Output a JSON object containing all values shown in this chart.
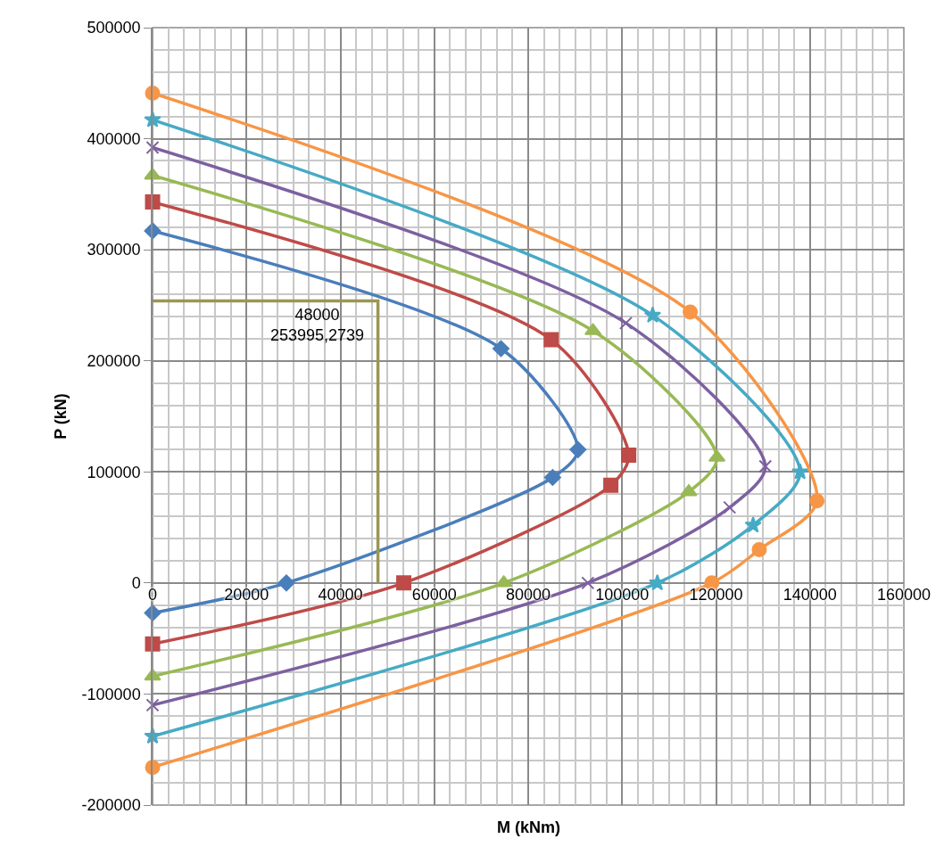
{
  "chart_data": {
    "type": "line",
    "xlabel": "M (kNm)",
    "ylabel": "P (kN)",
    "xlim": [
      0,
      160000
    ],
    "xticks": [
      0,
      20000,
      40000,
      60000,
      80000,
      100000,
      120000,
      140000,
      160000
    ],
    "ylim": [
      -200000,
      500000
    ],
    "yticks": [
      -200000,
      -100000,
      0,
      100000,
      200000,
      300000,
      400000,
      500000
    ],
    "grid": true,
    "line_style": "solid",
    "series": [
      {
        "color": "#4a7ebb",
        "marker": "diamond",
        "x": [
          0,
          74200,
          90600,
          85200,
          28500,
          0
        ],
        "values": [
          317000,
          211000,
          120000,
          95000,
          0,
          -27000
        ]
      },
      {
        "color": "#be4b48",
        "marker": "square",
        "x": [
          0,
          84900,
          101400,
          97600,
          53500,
          0
        ],
        "values": [
          343000,
          219000,
          115000,
          88000,
          0,
          -55000
        ]
      },
      {
        "color": "#98b954",
        "marker": "triangle",
        "x": [
          0,
          93800,
          120200,
          114200,
          74800,
          0
        ],
        "values": [
          367000,
          227000,
          113000,
          82000,
          0,
          -84000
        ]
      },
      {
        "color": "#7d60a0",
        "marker": "cross",
        "x": [
          0,
          100800,
          130500,
          122900,
          92700,
          0
        ],
        "values": [
          392000,
          234000,
          105000,
          68000,
          0,
          -110000
        ]
      },
      {
        "color": "#46aac5",
        "marker": "star",
        "x": [
          0,
          106500,
          137900,
          127900,
          107500,
          0
        ],
        "values": [
          417000,
          241000,
          100000,
          52000,
          0,
          -138000
        ]
      },
      {
        "color": "#f79646",
        "marker": "circle",
        "x": [
          0,
          114500,
          141500,
          129200,
          119100,
          0
        ],
        "values": [
          441000,
          244000,
          74000,
          30000,
          0,
          -166000
        ]
      },
      {
        "color": "#9b9653",
        "marker": "none",
        "x": [
          0,
          48000,
          48000
        ],
        "values": [
          253995.2739,
          253995.2739,
          0
        ]
      }
    ],
    "annotations": [
      {
        "text": "48000\n253995,2739",
        "x": 48000,
        "y": 253995.2739
      }
    ]
  }
}
